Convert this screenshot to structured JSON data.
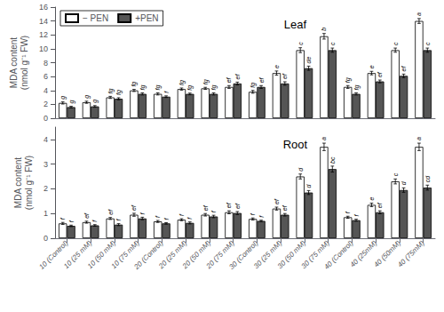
{
  "chart_data": [
    {
      "type": "bar",
      "title": "Leaf",
      "ylabel": "MDA content\n(nmol g⁻¹ FW)",
      "categories": [
        null,
        null,
        null,
        null,
        null,
        null,
        null,
        null,
        null,
        null,
        null,
        null,
        null,
        null,
        null,
        null
      ],
      "series": [
        {
          "name": "− PEN",
          "color": "#ffffff",
          "values": [
            2.2,
            2.3,
            3.0,
            4.0,
            3.5,
            4.2,
            4.3,
            4.5,
            3.8,
            6.5,
            9.8,
            11.8,
            4.5,
            6.5,
            9.8,
            14.0
          ],
          "errors": [
            0.15,
            0.15,
            0.15,
            0.15,
            0.15,
            0.15,
            0.15,
            0.2,
            0.2,
            0.3,
            0.35,
            0.4,
            0.2,
            0.25,
            0.3,
            0.35
          ],
          "letters": [
            "g",
            "g",
            "fg",
            "fg",
            "fg",
            "fg",
            "fg",
            "ef",
            "fg",
            "e",
            "c",
            "b",
            "fg",
            "e",
            "c",
            "a"
          ]
        },
        {
          "name": "+PEN",
          "color": "#555555",
          "values": [
            1.6,
            1.7,
            2.8,
            3.5,
            3.1,
            3.5,
            3.5,
            5.0,
            4.5,
            5.0,
            7.2,
            9.8,
            3.5,
            5.3,
            6.1,
            9.8
          ],
          "errors": [
            0.12,
            0.12,
            0.15,
            0.15,
            0.12,
            0.12,
            0.15,
            0.2,
            0.2,
            0.25,
            0.3,
            0.3,
            0.15,
            0.2,
            0.25,
            0.3
          ],
          "letters": [
            "g",
            "g",
            "fg",
            "fg",
            "f",
            "fg",
            "fg",
            "ef",
            "ef",
            "ef",
            "de",
            "c",
            "fg",
            "ef",
            "ef",
            "c"
          ]
        }
      ],
      "ylim": [
        0,
        16
      ],
      "yticks": [
        0,
        2,
        4,
        6,
        8,
        10,
        12,
        14,
        16
      ],
      "grid": false,
      "legend": "upper left"
    },
    {
      "type": "bar",
      "title": "Root",
      "ylabel": "MDA content\n(nmol g⁻¹ FW)",
      "categories": [
        "10 (Control)",
        "10 (25 mM)",
        "10 (50 mM)",
        "10 (75 mM)",
        "20 (Control)",
        "20 (25 mM)",
        "20 (50 mM)",
        "20 (75 mM)",
        "30 (Control)",
        "30 (25 mM)",
        "30 (50 mM)",
        "30 (75 mM)",
        "40 (Control)",
        "40 (25mM)",
        "40 (50mM)",
        "40 (75mM)"
      ],
      "series": [
        {
          "name": "− PEN",
          "color": "#ffffff",
          "values": [
            0.6,
            0.65,
            0.8,
            0.95,
            0.68,
            0.75,
            0.95,
            1.05,
            0.78,
            1.2,
            2.5,
            3.7,
            0.85,
            1.35,
            2.3,
            3.7
          ],
          "errors": [
            0.04,
            0.04,
            0.04,
            0.06,
            0.04,
            0.04,
            0.05,
            0.06,
            0.04,
            0.06,
            0.1,
            0.15,
            0.04,
            0.07,
            0.1,
            0.15
          ],
          "letters": [
            "f",
            "ef",
            "ef",
            "ef",
            "f",
            "f",
            "ef",
            "ef",
            "f",
            "ef",
            "d",
            "a",
            "f",
            "e",
            "c",
            "a"
          ]
        },
        {
          "name": "+PEN",
          "color": "#555555",
          "values": [
            0.5,
            0.52,
            0.55,
            0.8,
            0.6,
            0.62,
            0.88,
            1.02,
            0.7,
            0.95,
            1.85,
            2.8,
            0.73,
            1.05,
            1.95,
            2.05
          ],
          "errors": [
            0.03,
            0.03,
            0.04,
            0.05,
            0.03,
            0.04,
            0.05,
            0.06,
            0.03,
            0.05,
            0.08,
            0.12,
            0.04,
            0.06,
            0.09,
            0.1
          ],
          "letters": [
            "f",
            "f",
            "f",
            "f",
            "f",
            "f",
            "f",
            "ef",
            "f",
            "ef",
            "d",
            "bc",
            "f",
            "ef",
            "d",
            "cd"
          ]
        }
      ],
      "ylim": [
        0,
        4.5
      ],
      "yticks": [
        0,
        1,
        2,
        3,
        4
      ],
      "grid": false
    }
  ]
}
